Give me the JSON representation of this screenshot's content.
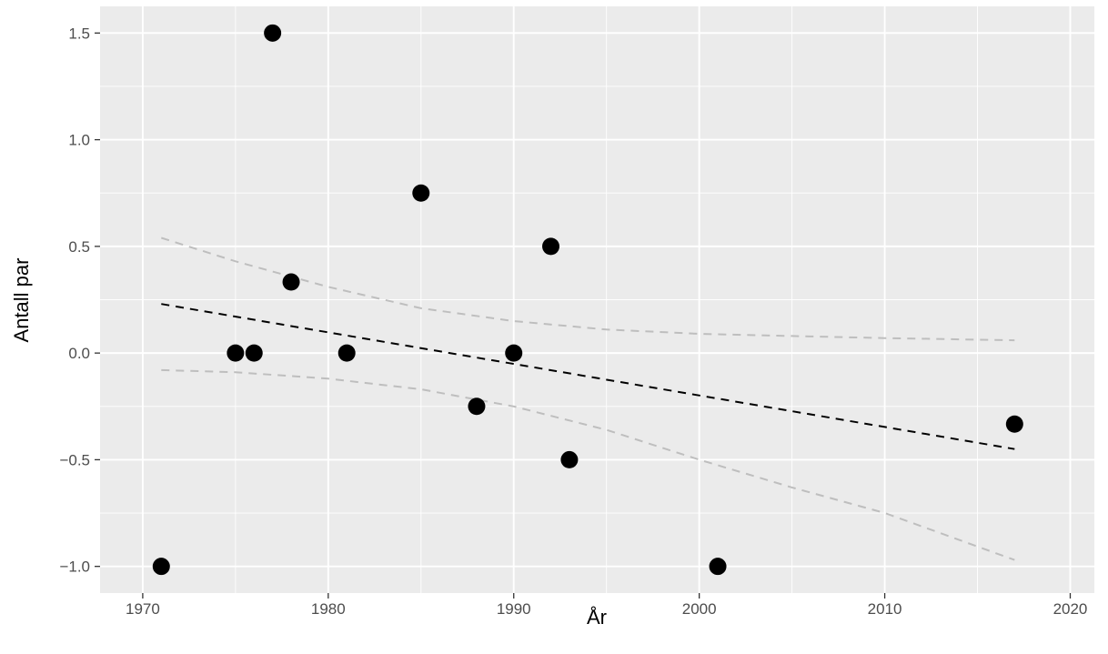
{
  "chart_data": {
    "type": "scatter",
    "title": "",
    "xlabel": "År",
    "ylabel": "Antall par",
    "xlim": [
      1967.7,
      2021.3
    ],
    "ylim": [
      -1.125,
      1.625
    ],
    "xticks": [
      1970,
      1980,
      1990,
      2000,
      2010,
      2020
    ],
    "xtick_labels": [
      "1970",
      "1980",
      "1990",
      "2000",
      "2010",
      "2020"
    ],
    "xminor": [
      1975,
      1985,
      1995,
      2005,
      2015
    ],
    "yticks": [
      -1.0,
      -0.5,
      0.0,
      0.5,
      1.0,
      1.5
    ],
    "ytick_labels": [
      "−1.0",
      "−0.5",
      "0.0",
      "0.5",
      "1.0",
      "1.5"
    ],
    "yminor": [
      -0.75,
      -0.25,
      0.25,
      0.75,
      1.25
    ],
    "grid": true,
    "legend": "none",
    "colors": {
      "panel": "#ebebeb",
      "grid": "#ffffff",
      "points": "#000000",
      "trend": "#000000",
      "confidence": "#bebebe"
    },
    "points": [
      {
        "x": 1971,
        "y": -1.0
      },
      {
        "x": 1975,
        "y": 0.0
      },
      {
        "x": 1976,
        "y": 0.0
      },
      {
        "x": 1977,
        "y": 1.5
      },
      {
        "x": 1978,
        "y": 0.333
      },
      {
        "x": 1981,
        "y": 0.0
      },
      {
        "x": 1985,
        "y": 0.75
      },
      {
        "x": 1988,
        "y": -0.25
      },
      {
        "x": 1990,
        "y": 0.0
      },
      {
        "x": 1992,
        "y": 0.5
      },
      {
        "x": 1993,
        "y": -0.5
      },
      {
        "x": 2001,
        "y": -1.0
      },
      {
        "x": 2017,
        "y": -0.333
      }
    ],
    "trend_line": {
      "x": [
        1971,
        2017
      ],
      "y": [
        0.23,
        -0.45
      ]
    },
    "confidence_upper": {
      "x": [
        1971,
        1975,
        1980,
        1985,
        1990,
        1995,
        2000,
        2005,
        2010,
        2017
      ],
      "y": [
        0.54,
        0.43,
        0.31,
        0.21,
        0.15,
        0.11,
        0.09,
        0.08,
        0.07,
        0.06
      ]
    },
    "confidence_lower": {
      "x": [
        1971,
        1975,
        1980,
        1985,
        1990,
        1995,
        2000,
        2005,
        2010,
        2017
      ],
      "y": [
        -0.08,
        -0.09,
        -0.12,
        -0.17,
        -0.25,
        -0.36,
        -0.5,
        -0.63,
        -0.75,
        -0.97
      ]
    }
  }
}
